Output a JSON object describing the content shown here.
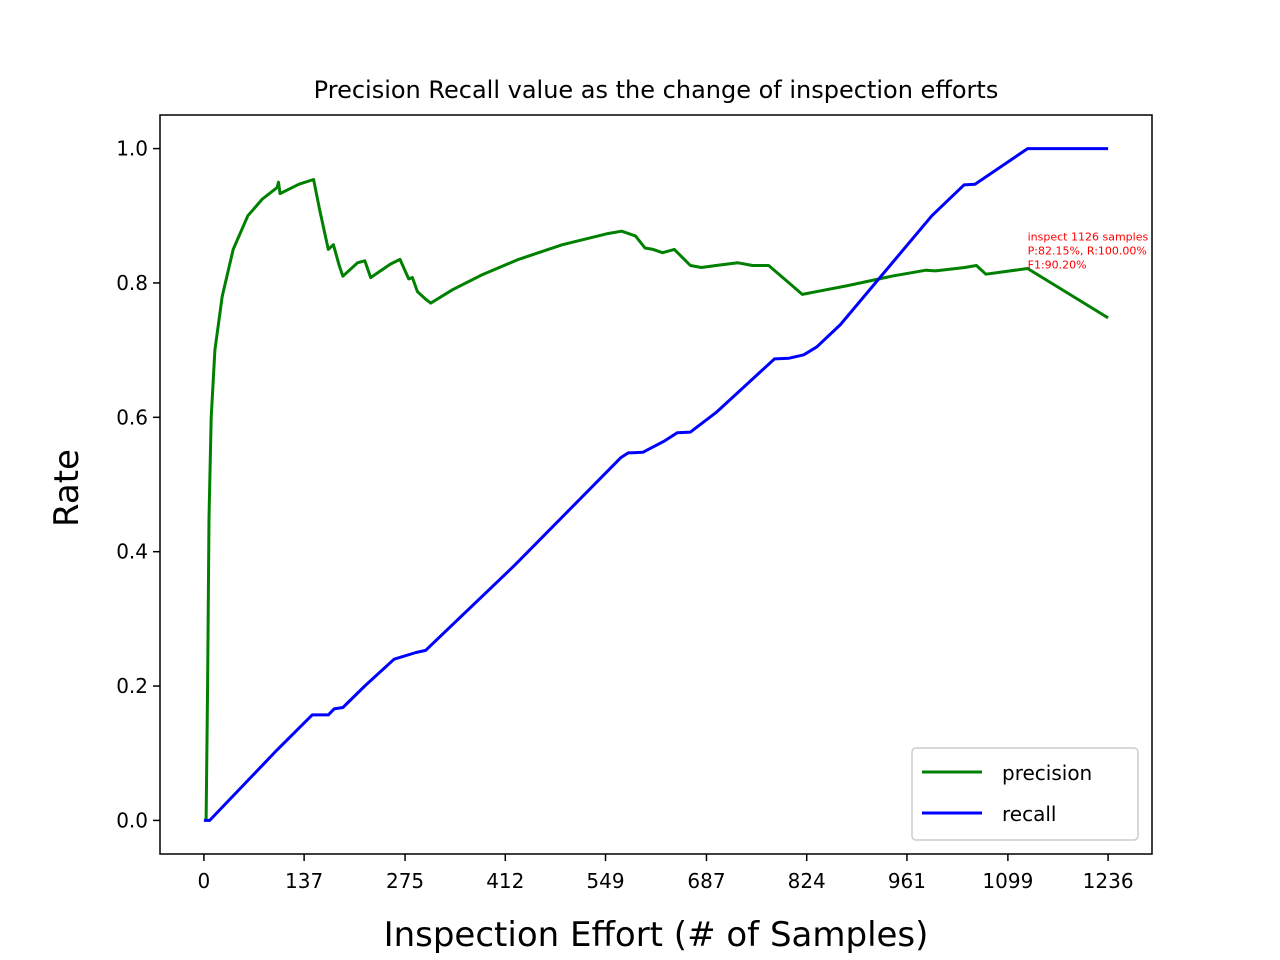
{
  "chart_data": {
    "type": "line",
    "title": "Precision Recall value as the change of inspection efforts",
    "xlabel": "Inspection Effort (# of Samples)",
    "ylabel": "Rate",
    "xlim": [
      -60,
      1296
    ],
    "ylim": [
      -0.05,
      1.05
    ],
    "xticks": [
      0,
      137,
      275,
      412,
      549,
      687,
      824,
      961,
      1099,
      1236
    ],
    "xtick_labels": [
      "0",
      "137",
      "275",
      "412",
      "549",
      "687",
      "824",
      "961",
      "1099",
      "1236"
    ],
    "yticks": [
      0.0,
      0.2,
      0.4,
      0.6,
      0.8,
      1.0
    ],
    "ytick_labels": [
      "0.0",
      "0.2",
      "0.4",
      "0.6",
      "0.8",
      "1.0"
    ],
    "grid": false,
    "legend_position": "lower-right",
    "series": [
      {
        "name": "precision",
        "color": "#008000",
        "points": [
          [
            3,
            0.0
          ],
          [
            5,
            0.2
          ],
          [
            7,
            0.45
          ],
          [
            10,
            0.6
          ],
          [
            15,
            0.7
          ],
          [
            25,
            0.78
          ],
          [
            40,
            0.85
          ],
          [
            60,
            0.9
          ],
          [
            80,
            0.925
          ],
          [
            100,
            0.942
          ],
          [
            102,
            0.95
          ],
          [
            104,
            0.933
          ],
          [
            130,
            0.947
          ],
          [
            150,
            0.954
          ],
          [
            158,
            0.91
          ],
          [
            170,
            0.85
          ],
          [
            177,
            0.857
          ],
          [
            185,
            0.826
          ],
          [
            190,
            0.81
          ],
          [
            210,
            0.83
          ],
          [
            220,
            0.833
          ],
          [
            228,
            0.808
          ],
          [
            255,
            0.828
          ],
          [
            268,
            0.835
          ],
          [
            280,
            0.806
          ],
          [
            285,
            0.808
          ],
          [
            292,
            0.787
          ],
          [
            303,
            0.776
          ],
          [
            310,
            0.77
          ],
          [
            340,
            0.79
          ],
          [
            380,
            0.812
          ],
          [
            430,
            0.835
          ],
          [
            490,
            0.857
          ],
          [
            550,
            0.873
          ],
          [
            571,
            0.877
          ],
          [
            590,
            0.87
          ],
          [
            603,
            0.852
          ],
          [
            614,
            0.85
          ],
          [
            627,
            0.845
          ],
          [
            643,
            0.85
          ],
          [
            665,
            0.826
          ],
          [
            680,
            0.823
          ],
          [
            700,
            0.826
          ],
          [
            730,
            0.83
          ],
          [
            750,
            0.826
          ],
          [
            772,
            0.826
          ],
          [
            800,
            0.8
          ],
          [
            818,
            0.783
          ],
          [
            837,
            0.787
          ],
          [
            880,
            0.796
          ],
          [
            940,
            0.81
          ],
          [
            987,
            0.819
          ],
          [
            1000,
            0.818
          ],
          [
            1040,
            0.823
          ],
          [
            1056,
            0.826
          ],
          [
            1069,
            0.813
          ],
          [
            1126,
            0.8215
          ],
          [
            1236,
            0.748
          ]
        ]
      },
      {
        "name": "recall",
        "color": "#0000ff",
        "points": [
          [
            0,
            0.0
          ],
          [
            8,
            0.0
          ],
          [
            100,
            0.105
          ],
          [
            148,
            0.157
          ],
          [
            170,
            0.157
          ],
          [
            178,
            0.166
          ],
          [
            190,
            0.168
          ],
          [
            220,
            0.2
          ],
          [
            260,
            0.24
          ],
          [
            290,
            0.25
          ],
          [
            303,
            0.253
          ],
          [
            425,
            0.38
          ],
          [
            570,
            0.54
          ],
          [
            580,
            0.547
          ],
          [
            600,
            0.548
          ],
          [
            630,
            0.565
          ],
          [
            647,
            0.577
          ],
          [
            665,
            0.578
          ],
          [
            700,
            0.607
          ],
          [
            750,
            0.657
          ],
          [
            780,
            0.687
          ],
          [
            800,
            0.688
          ],
          [
            820,
            0.693
          ],
          [
            838,
            0.705
          ],
          [
            870,
            0.738
          ],
          [
            995,
            0.9
          ],
          [
            1039,
            0.946
          ],
          [
            1054,
            0.947
          ],
          [
            1126,
            1.0
          ],
          [
            1236,
            1.0
          ]
        ]
      }
    ],
    "annotation": {
      "lines": [
        "inspect 1126 samples",
        "P:82.15%, R:100.00%",
        "F1:90.20%"
      ],
      "color": "#ff0000",
      "anchor": [
        1126,
        0.8215
      ]
    }
  }
}
